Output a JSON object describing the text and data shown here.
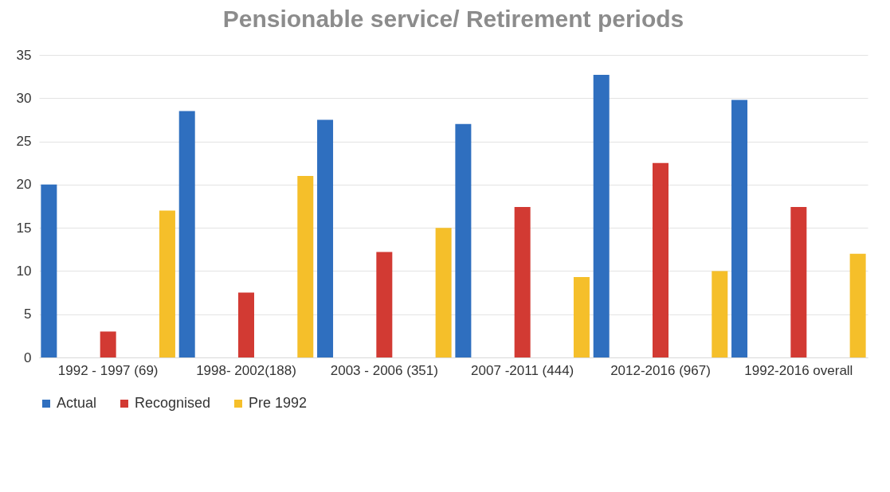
{
  "chart_data": {
    "type": "bar",
    "title": "Pensionable service/ Retirement periods",
    "categories": [
      "1992 - 1997 (69)",
      "1998- 2002(188)",
      "2003 - 2006 (351)",
      "2007 -2011 (444)",
      "2012-2016 (967)",
      "1992-2016 overall"
    ],
    "series": [
      {
        "name": "Actual",
        "color": "#2f6fbf",
        "values": [
          20,
          28.5,
          27.5,
          27,
          32.7,
          29.8
        ]
      },
      {
        "name": "Recognised",
        "color": "#d23a33",
        "values": [
          3,
          7.5,
          12.2,
          17.4,
          22.5,
          17.4
        ]
      },
      {
        "name": "Pre 1992",
        "color": "#f5bf2a",
        "values": [
          17,
          21,
          15,
          9.3,
          10,
          12
        ]
      }
    ],
    "ylim": [
      0,
      35
    ],
    "yticks": [
      0,
      5,
      10,
      15,
      20,
      25,
      30,
      35
    ],
    "grid": "y",
    "legend": "bottom"
  }
}
